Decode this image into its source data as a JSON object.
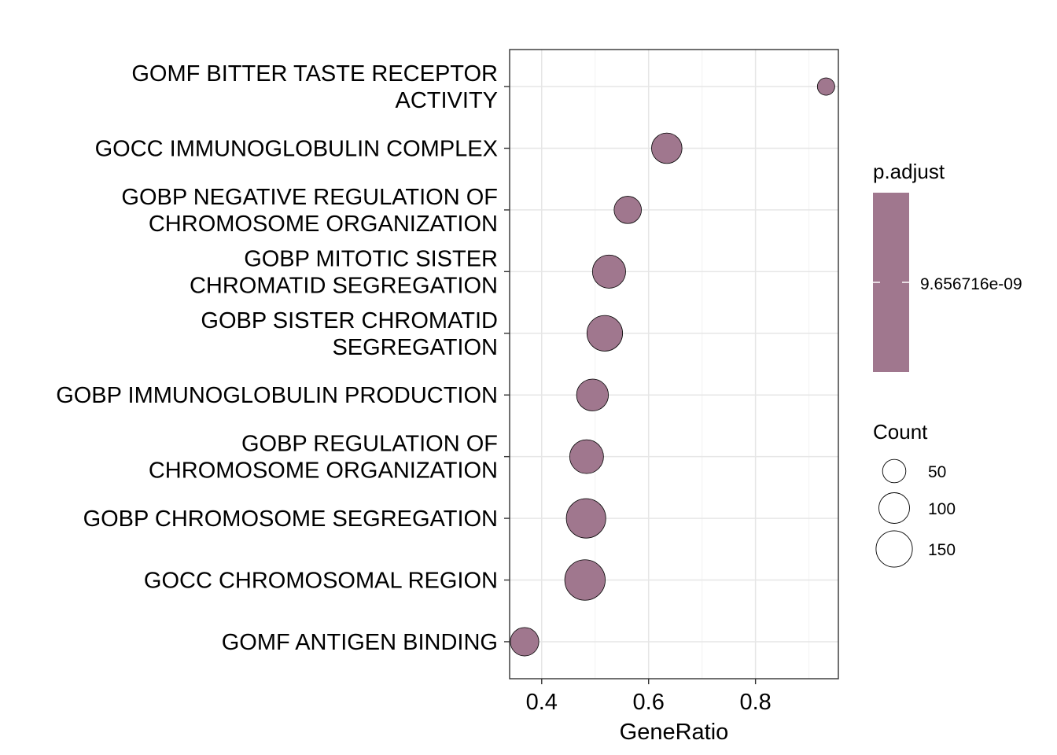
{
  "chart_data": {
    "type": "scatter",
    "title": "",
    "xlabel": "GeneRatio",
    "ylabel": "",
    "xlim": [
      0.34,
      0.955
    ],
    "x_ticks": [
      0.4,
      0.6,
      0.8
    ],
    "x_tick_labels": [
      "0.4",
      "0.6",
      "0.8"
    ],
    "grid": true,
    "categories": [
      [
        "GOMF BITTER TASTE RECEPTOR",
        "ACTIVITY"
      ],
      [
        "GOCC IMMUNOGLOBULIN COMPLEX"
      ],
      [
        "GOBP NEGATIVE REGULATION OF",
        "CHROMOSOME ORGANIZATION"
      ],
      [
        "GOBP MITOTIC SISTER",
        "CHROMATID SEGREGATION"
      ],
      [
        "GOBP SISTER CHROMATID",
        "SEGREGATION"
      ],
      [
        "GOBP IMMUNOGLOBULIN PRODUCTION"
      ],
      [
        "GOBP REGULATION OF",
        "CHROMOSOME ORGANIZATION"
      ],
      [
        "GOBP CHROMOSOME SEGREGATION"
      ],
      [
        "GOCC CHROMOSOMAL REGION"
      ],
      [
        "GOMF ANTIGEN BINDING"
      ]
    ],
    "gene_ratio": [
      0.932,
      0.634,
      0.561,
      0.526,
      0.518,
      0.495,
      0.484,
      0.483,
      0.481,
      0.368
    ],
    "count": [
      12,
      75,
      55,
      95,
      115,
      85,
      100,
      150,
      160,
      62
    ],
    "p_adjust": 9.656716e-09,
    "point_fill": "#A0778E",
    "point_stroke": "#000000",
    "legend_position": "right",
    "legend": {
      "color_title": "p.adjust",
      "color_value_label": "9.656716e-09",
      "size_title": "Count",
      "size_breaks": [
        50,
        100,
        150
      ],
      "size_labels": [
        "50",
        "100",
        "150"
      ]
    }
  }
}
